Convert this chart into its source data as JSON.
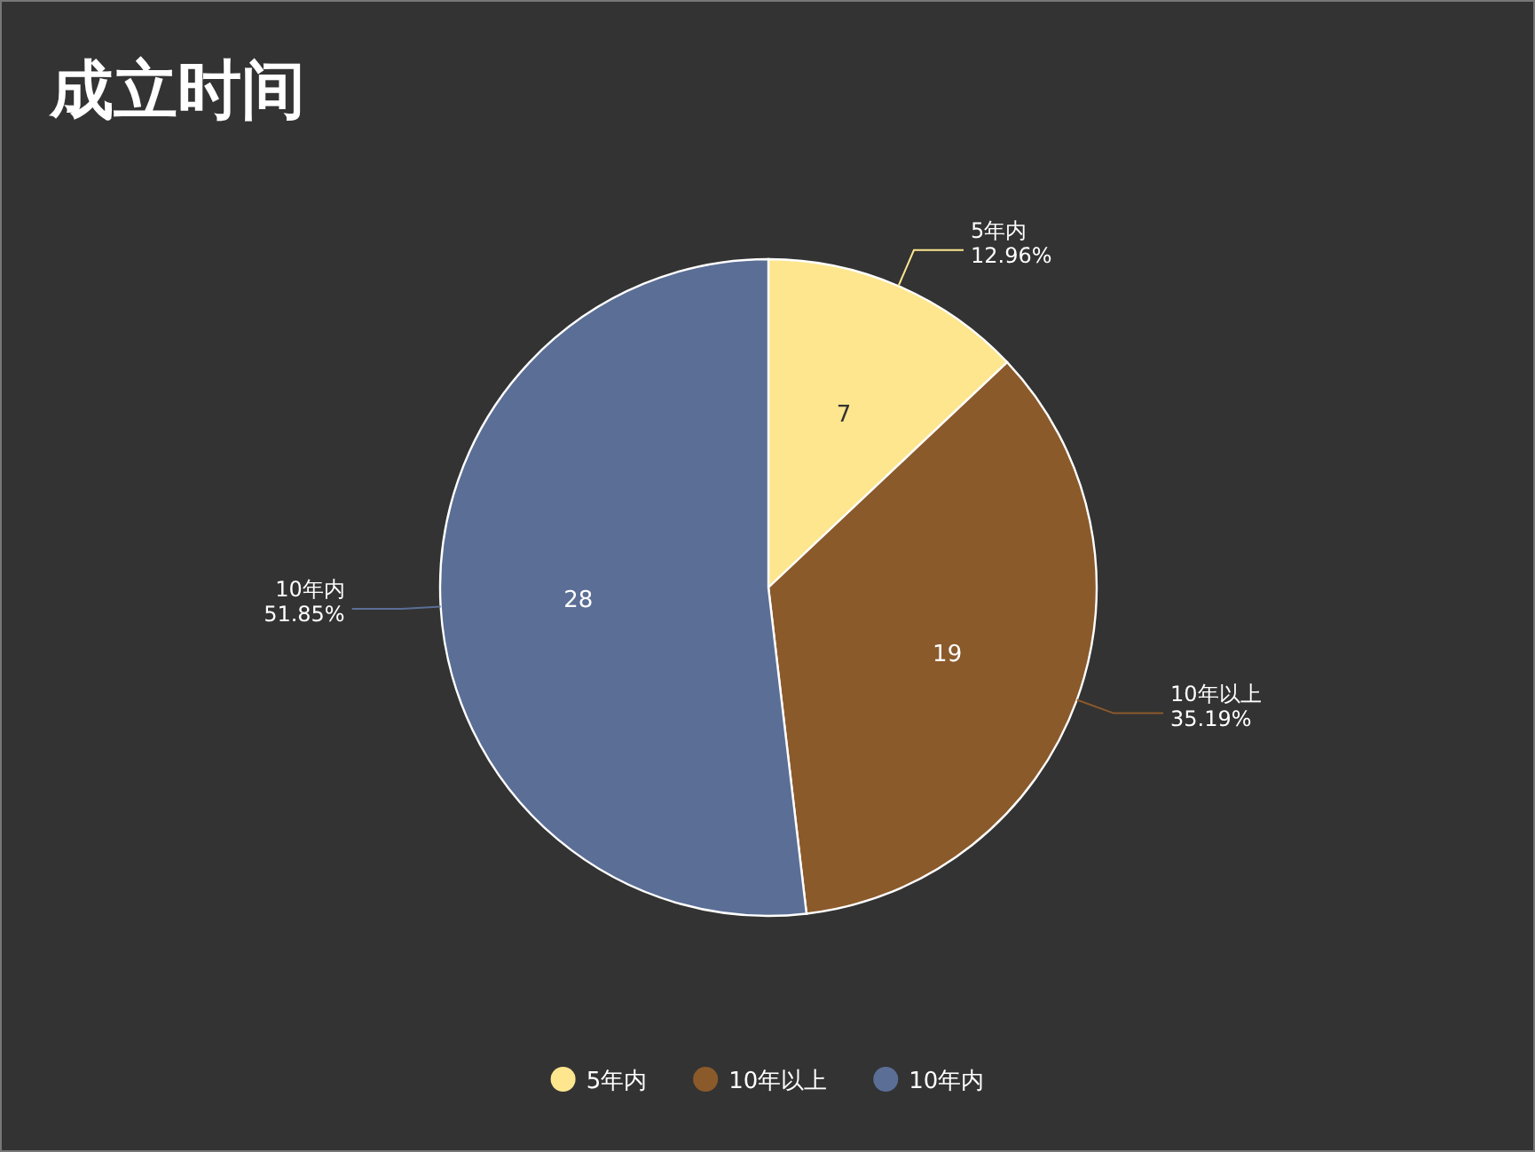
{
  "chart_data": {
    "type": "pie",
    "title": "成立时间",
    "categories": [
      "5年内",
      "10年以上",
      "10年内"
    ],
    "values": [
      7,
      19,
      28
    ],
    "colors": [
      "#fde68e",
      "#8b5a2b",
      "#5b6e96"
    ],
    "annotations": [
      "12.96%",
      "35.19%",
      "51.85%"
    ],
    "data_labels": true,
    "legend": "bottom"
  }
}
